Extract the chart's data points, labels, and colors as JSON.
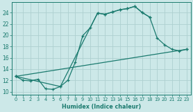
{
  "xlabel": "Humidex (Indice chaleur)",
  "bg_color": "#cce8e8",
  "line_color": "#1a7a6e",
  "grid_color": "#aed0d0",
  "xlim": [
    -0.5,
    23.5
  ],
  "ylim": [
    9.5,
    25.8
  ],
  "yticks": [
    10,
    12,
    14,
    16,
    18,
    20,
    22,
    24
  ],
  "xticks": [
    0,
    1,
    2,
    3,
    4,
    5,
    6,
    7,
    8,
    9,
    10,
    11,
    12,
    13,
    14,
    15,
    16,
    17,
    18,
    19,
    20,
    21,
    22,
    23
  ],
  "line1_x": [
    0,
    1,
    2,
    3,
    4,
    5,
    6,
    7,
    8,
    9,
    10,
    11,
    12,
    13,
    14,
    15,
    16,
    17,
    18
  ],
  "line1_y": [
    12.7,
    12.0,
    11.9,
    12.2,
    10.5,
    10.4,
    10.9,
    12.0,
    15.2,
    19.9,
    21.3,
    23.9,
    23.7,
    24.1,
    24.5,
    24.7,
    25.1,
    24.0,
    23.2
  ],
  "line2_x": [
    0,
    6,
    11,
    12,
    13,
    14,
    15,
    16,
    17,
    18,
    19,
    20,
    21,
    22,
    23
  ],
  "line2_y": [
    12.7,
    10.9,
    23.9,
    23.7,
    24.1,
    24.5,
    24.7,
    25.1,
    24.0,
    23.2,
    19.5,
    18.3,
    17.5,
    17.2,
    17.5
  ],
  "line3_x": [
    0,
    23
  ],
  "line3_y": [
    12.7,
    17.5
  ]
}
